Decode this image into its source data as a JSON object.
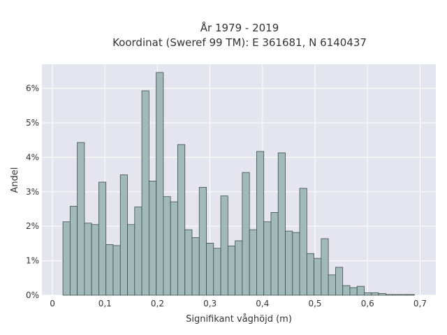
{
  "chart_data": {
    "type": "bar",
    "title_line1": "År 1979 - 2019",
    "title_line2": "Koordinat (Sweref 99 TM): E 361681, N 6140437",
    "xlabel": "Signifikant våghöjd (m)",
    "ylabel": "Andel",
    "xlim": [
      -0.02,
      0.73
    ],
    "ylim": [
      0,
      6.7
    ],
    "x_ticks": [
      {
        "value": 0,
        "label": "0"
      },
      {
        "value": 0.1,
        "label": "0,1"
      },
      {
        "value": 0.2,
        "label": "0,2"
      },
      {
        "value": 0.3,
        "label": "0,3"
      },
      {
        "value": 0.4,
        "label": "0,4"
      },
      {
        "value": 0.5,
        "label": "0,5"
      },
      {
        "value": 0.6,
        "label": "0,6"
      },
      {
        "value": 0.7,
        "label": "0,7"
      }
    ],
    "y_ticks": [
      {
        "value": 0,
        "label": "0%"
      },
      {
        "value": 1,
        "label": "1%"
      },
      {
        "value": 2,
        "label": "2%"
      },
      {
        "value": 3,
        "label": "3%"
      },
      {
        "value": 4,
        "label": "4%"
      },
      {
        "value": 5,
        "label": "5%"
      },
      {
        "value": 6,
        "label": "6%"
      }
    ],
    "grid": true,
    "bin_start": 0.02,
    "bin_width": 0.01366,
    "values": [
      2.13,
      2.58,
      4.43,
      2.09,
      2.05,
      3.28,
      1.47,
      1.44,
      3.49,
      2.05,
      2.56,
      5.93,
      3.31,
      6.46,
      2.86,
      2.71,
      4.37,
      1.9,
      1.67,
      3.13,
      1.51,
      1.36,
      2.88,
      1.43,
      1.58,
      3.56,
      1.9,
      4.17,
      2.13,
      2.4,
      4.13,
      1.86,
      1.82,
      3.1,
      1.21,
      1.07,
      1.64,
      0.59,
      0.81,
      0.28,
      0.22,
      0.26,
      0.07,
      0.07,
      0.05,
      0.02,
      0.02,
      0.02,
      0.02
    ],
    "colors": {
      "plot_bg": "#e5e5f0",
      "bar_fill": "#a2b9b9",
      "bar_stroke": "#3d4d4d",
      "grid": "#ffffff"
    }
  }
}
